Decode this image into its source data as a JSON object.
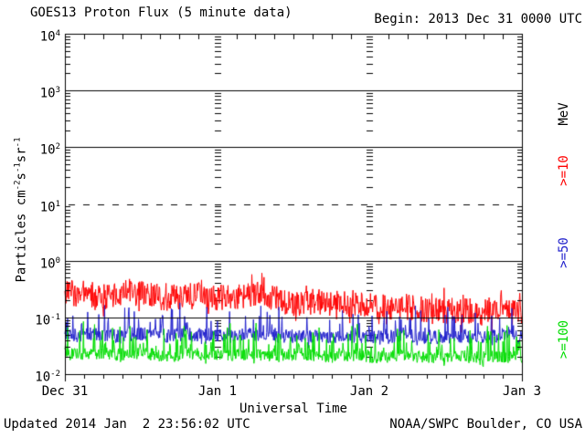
{
  "header": {
    "title": "GOES13 Proton Flux (5 minute data)",
    "begin": "Begin: 2013 Dec 31 0000 UTC"
  },
  "footer": {
    "updated": "Updated 2014 Jan  2 23:56:02 UTC",
    "source": "NOAA/SWPC Boulder, CO USA"
  },
  "chart_data": {
    "type": "line",
    "title": "GOES13 Proton Flux (5 minute data)",
    "begin_label": "Begin: 2013 Dec 31 0000 UTC",
    "xlabel": "Universal Time",
    "ylabel": {
      "t1": "Particles cm",
      "sup1": "-2",
      "t2": "s",
      "sup2": "-1",
      "t3": "sr",
      "sup3": "-1"
    },
    "right_axis_unit": "MeV",
    "x_range_days": 3,
    "y_range_exp": [
      -2,
      4
    ],
    "y_scale": "log",
    "points_per_day": 288,
    "x_ticks": [
      {
        "label": "Dec 31",
        "day": 0
      },
      {
        "label": "Jan 1",
        "day": 1
      },
      {
        "label": "Jan 2",
        "day": 2
      },
      {
        "label": "Jan 3",
        "day": 3
      }
    ],
    "y_ticks": [
      {
        "base": "10",
        "exp": "4"
      },
      {
        "base": "10",
        "exp": "3"
      },
      {
        "base": "10",
        "exp": "2"
      },
      {
        "base": "10",
        "exp": "1"
      },
      {
        "base": "10",
        "exp": "0"
      },
      {
        "base": "10",
        "exp": "-1"
      },
      {
        "base": "10",
        "exp": "-2"
      }
    ],
    "grid": {
      "solid_exps": [
        3,
        2,
        0,
        -1
      ],
      "dashed_exps": [
        1
      ],
      "day_minor_columns_days": [
        1,
        2
      ],
      "minor_tick_hours": 3
    },
    "series": [
      {
        "name": "protons_gte_10MeV",
        "label": ">=10",
        "color": "#ff0000",
        "threshold_mev": 10,
        "approx_range": {
          "min": 0.07,
          "max": 0.55
        },
        "trend_2h": [
          0.26,
          0.27,
          0.25,
          0.23,
          0.25,
          0.28,
          0.26,
          0.23,
          0.22,
          0.23,
          0.25,
          0.24,
          0.23,
          0.22,
          0.24,
          0.25,
          0.22,
          0.19,
          0.18,
          0.19,
          0.18,
          0.17,
          0.18,
          0.17,
          0.16,
          0.15,
          0.14,
          0.15,
          0.14,
          0.13,
          0.13,
          0.14,
          0.13,
          0.13,
          0.14,
          0.13,
          0.12
        ],
        "noise_dex": 0.24,
        "spike_prob": 0.08,
        "spike_dex": 0.22,
        "dip_prob": 0.08,
        "dip_dex": 0.26,
        "floor_exp": -1.99
      },
      {
        "name": "protons_gte_50MeV",
        "label": ">=50",
        "color": "#2222cc",
        "threshold_mev": 50,
        "approx_range": {
          "min": 0.028,
          "max": 0.15
        },
        "trend_2h": [
          0.05,
          0.048,
          0.052,
          0.05,
          0.047,
          0.05,
          0.052,
          0.049,
          0.047,
          0.05,
          0.048,
          0.05,
          0.048,
          0.047,
          0.049,
          0.05,
          0.047,
          0.046,
          0.047,
          0.048,
          0.046,
          0.045,
          0.047,
          0.046,
          0.045,
          0.044,
          0.046,
          0.047,
          0.045,
          0.044,
          0.045,
          0.046,
          0.044,
          0.045,
          0.046,
          0.045,
          0.044
        ],
        "noise_dex": 0.12,
        "spike_prob": 0.15,
        "spike_dex": 0.5,
        "dip_prob": 0.06,
        "dip_dex": 0.15,
        "floor_exp": -1.6
      },
      {
        "name": "protons_gte_100MeV",
        "label": ">=100",
        "color": "#00dd00",
        "threshold_mev": 100,
        "approx_range": {
          "min": 0.014,
          "max": 0.07
        },
        "trend_2h": [
          0.023,
          0.022,
          0.024,
          0.023,
          0.022,
          0.023,
          0.024,
          0.022,
          0.021,
          0.022,
          0.023,
          0.022,
          0.022,
          0.021,
          0.022,
          0.023,
          0.021,
          0.021,
          0.022,
          0.021,
          0.021,
          0.02,
          0.021,
          0.021,
          0.02,
          0.02,
          0.021,
          0.021,
          0.02,
          0.02,
          0.02,
          0.021,
          0.02,
          0.02,
          0.021,
          0.02,
          0.02
        ],
        "noise_dex": 0.11,
        "spike_prob": 0.18,
        "spike_dex": 0.48,
        "dip_prob": 0.05,
        "dip_dex": 0.12,
        "floor_exp": -1.87
      }
    ]
  }
}
